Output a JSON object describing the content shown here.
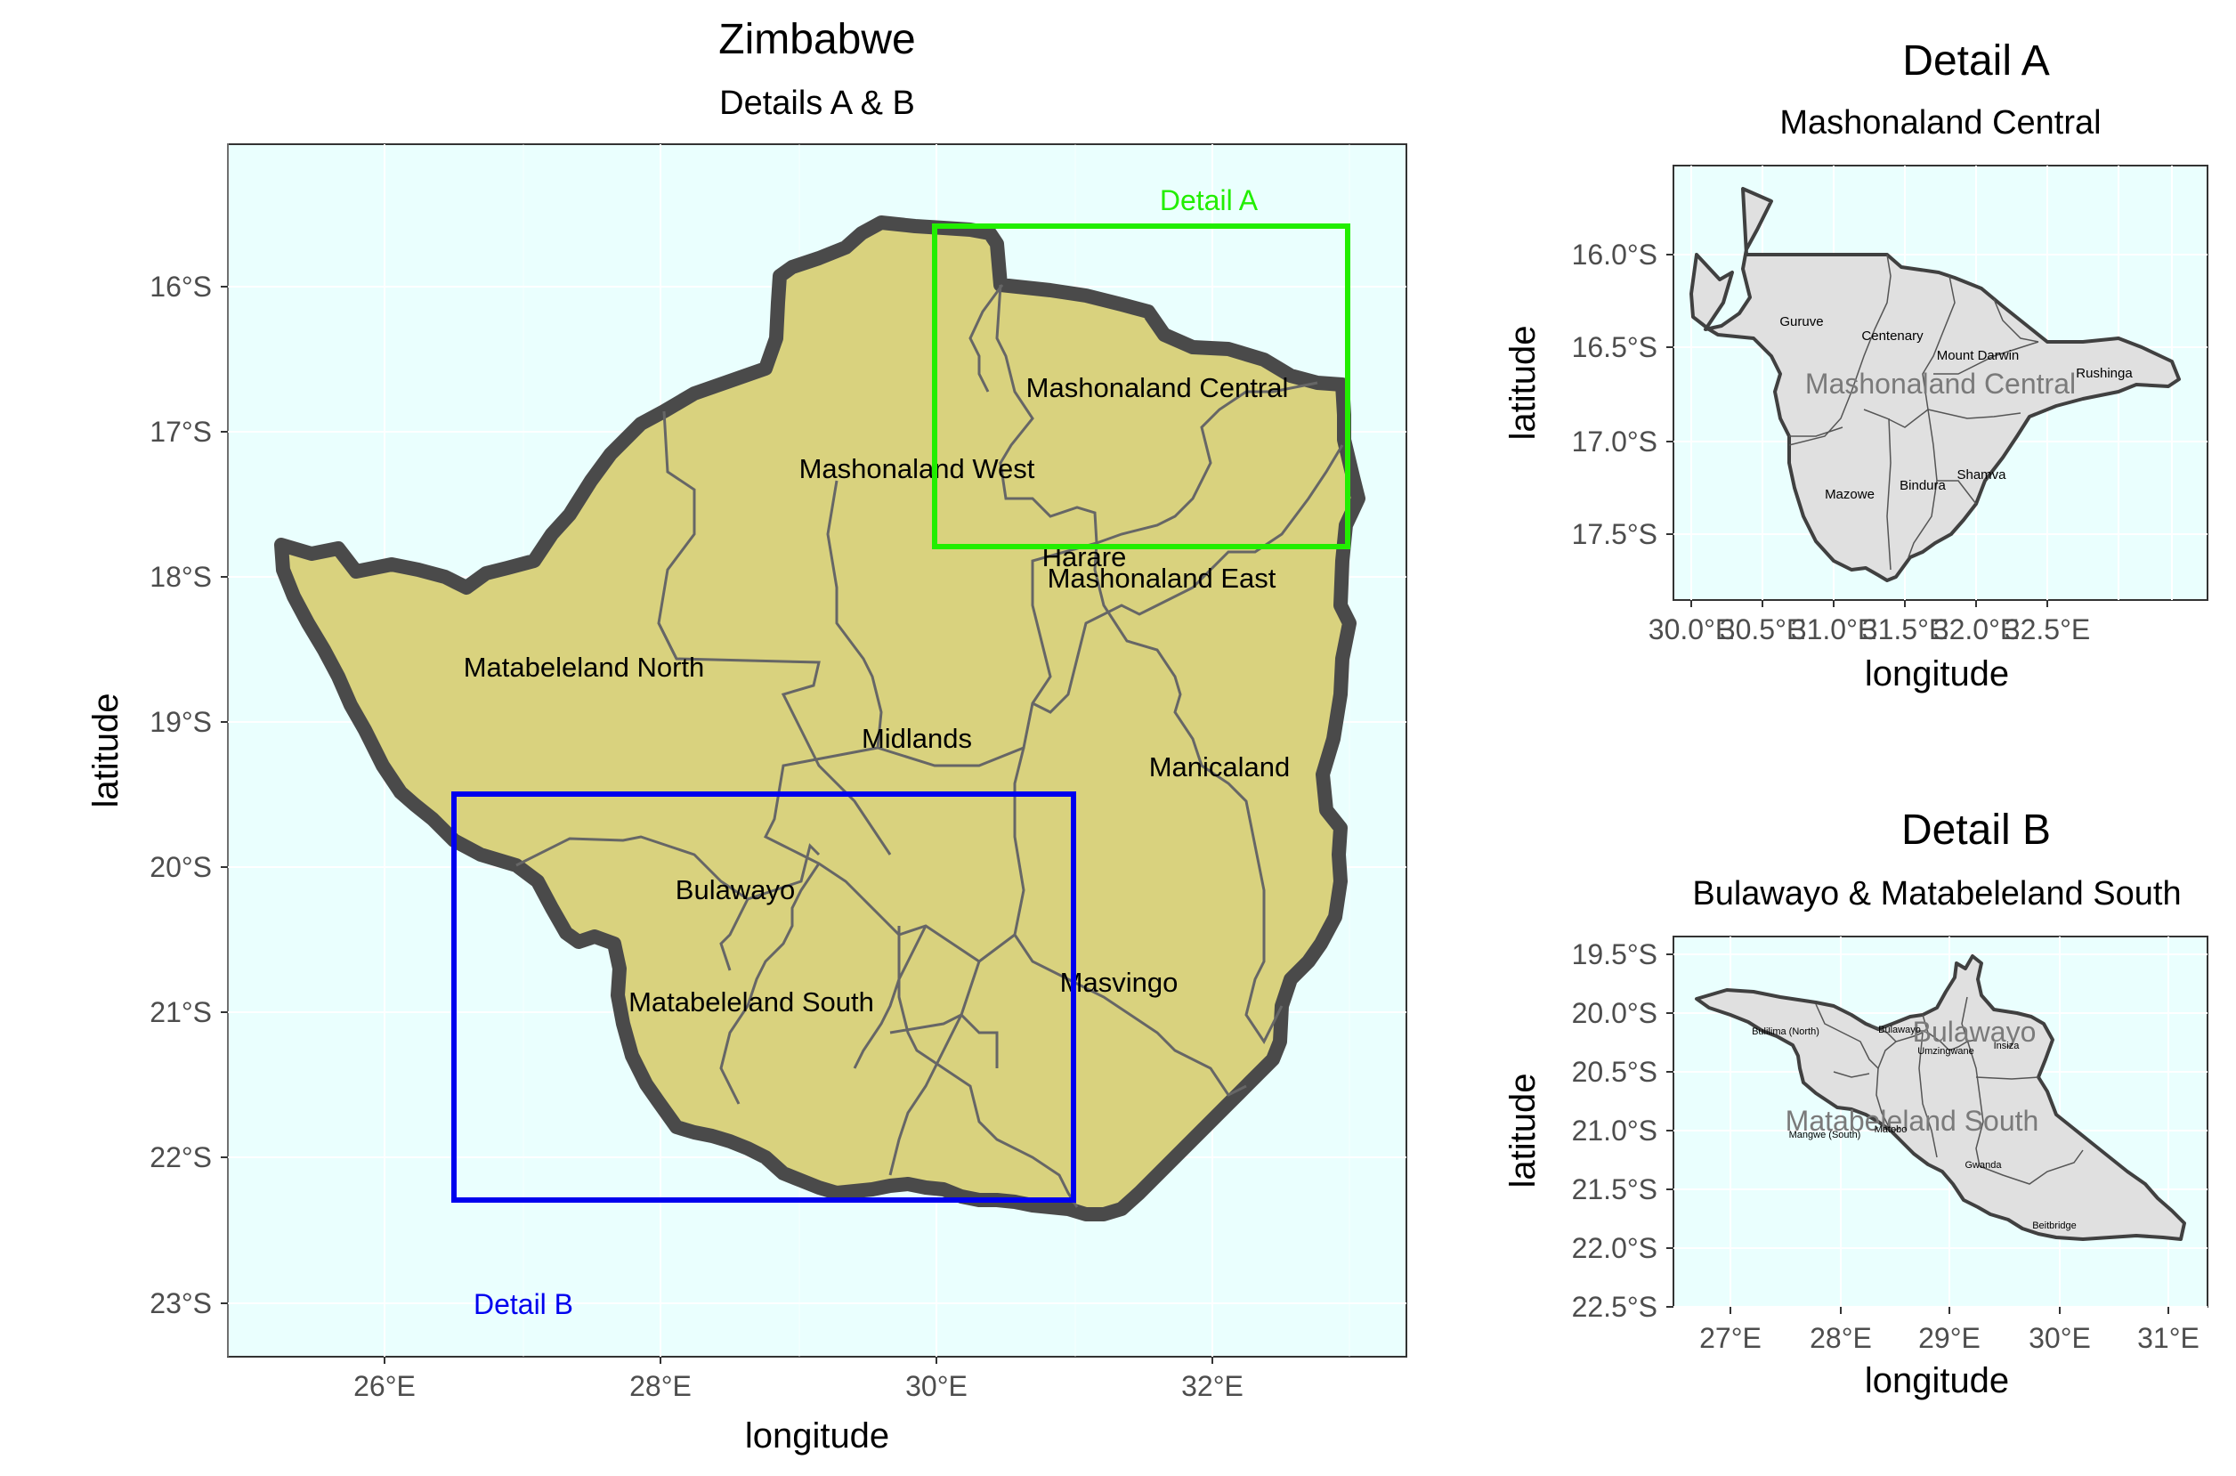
{
  "main_map": {
    "title": "Zimbabwe",
    "subtitle": "Details A & B",
    "xlabel": "longitude",
    "ylabel": "latitude",
    "x_ticks": [
      "26°E",
      "28°E",
      "30°E",
      "32°E"
    ],
    "y_ticks": [
      "16°S",
      "17°S",
      "18°S",
      "19°S",
      "20°S",
      "21°S",
      "22°S",
      "23°S"
    ],
    "regions": [
      "Mashonaland Central",
      "Mashonaland West",
      "Harare",
      "Mashonaland East",
      "Matabeleland North",
      "Midlands",
      "Manicaland",
      "Bulawayo",
      "Matabeleland South",
      "Masvingo"
    ],
    "detail_a_label": "Detail A",
    "detail_b_label": "Detail B",
    "detail_a_color": "#22ee00",
    "detail_b_color": "#0000ee",
    "fill_color": "#d9d27e",
    "background_color": "#eafffe"
  },
  "detail_a": {
    "title": "Detail A",
    "subtitle": "Mashonaland Central",
    "xlabel": "longitude",
    "ylabel": "latitude",
    "x_ticks": [
      "30.0°E",
      "30.5°E",
      "31.0°E",
      "31.5°E",
      "32.0°E",
      "32.5°E"
    ],
    "y_ticks": [
      "16.0°S",
      "16.5°S",
      "17.0°S",
      "17.5°S"
    ],
    "region_label": "Mashonaland Central",
    "districts": [
      "Guruve",
      "Centenary",
      "Mount Darwin",
      "Rushinga",
      "Mazowe",
      "Bindura",
      "Shamva"
    ]
  },
  "detail_b": {
    "title": "Detail B",
    "subtitle": "Bulawayo & Matabeleland South",
    "xlabel": "longitude",
    "ylabel": "latitude",
    "x_ticks": [
      "27°E",
      "28°E",
      "29°E",
      "30°E",
      "31°E"
    ],
    "y_ticks": [
      "19.5°S",
      "20.0°S",
      "20.5°S",
      "21.0°S",
      "21.5°S",
      "22.0°S",
      "22.5°S"
    ],
    "region_labels": [
      "Bulawayo",
      "Matabeleland South"
    ],
    "districts": [
      "Bulilima (North)",
      "Bulawayo",
      "Umzingwane",
      "Insiza",
      "Mangwe (South)",
      "Matobo",
      "Gwanda",
      "Beitbridge"
    ]
  }
}
